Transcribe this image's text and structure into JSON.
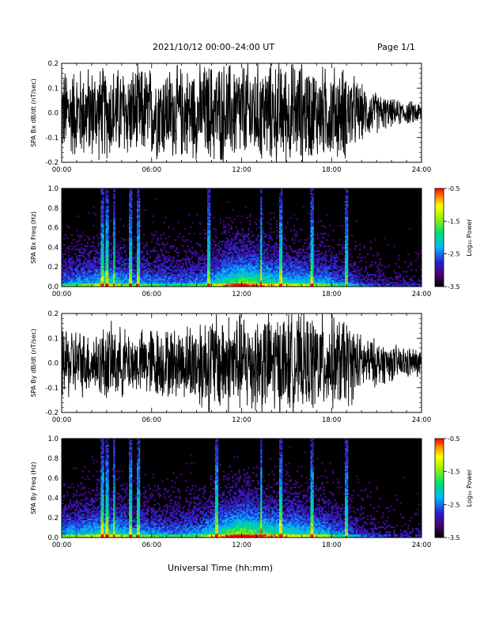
{
  "header": {
    "title": "2021/10/12  00:00–24:00 UT",
    "page": "Page 1/1"
  },
  "footer": {
    "xlabel": "Universal Time (hh:mm)"
  },
  "chart_data": [
    {
      "type": "line",
      "ylabel": "SPA Bx dB/dt (nT/sec)",
      "xlim": [
        "00:00",
        "24:00"
      ],
      "ylim": [
        -0.2,
        0.2
      ],
      "x_ticks": [
        "00:00",
        "06:00",
        "12:00",
        "18:00",
        "24:00"
      ],
      "y_ticks": [
        "-0.2",
        "-0.1",
        "0.0",
        "0.1",
        "0.2"
      ],
      "envelope_hours": [
        0,
        1,
        2,
        3,
        4,
        5,
        6,
        7,
        8,
        9,
        10,
        11,
        12,
        13,
        14,
        15,
        16,
        17,
        18,
        19,
        20,
        21,
        22,
        23,
        24
      ],
      "envelope_amplitude": [
        0.19,
        0.2,
        0.2,
        0.2,
        0.2,
        0.2,
        0.2,
        0.2,
        0.2,
        0.2,
        0.22,
        0.22,
        0.22,
        0.22,
        0.22,
        0.22,
        0.22,
        0.2,
        0.2,
        0.2,
        0.12,
        0.09,
        0.06,
        0.05,
        0.05
      ]
    },
    {
      "type": "heatmap",
      "ylabel": "SPA Bx Freq (Hz)",
      "xlim": [
        "00:00",
        "24:00"
      ],
      "ylim": [
        0.0,
        1.0
      ],
      "x_ticks": [
        "00:00",
        "06:00",
        "12:00",
        "18:00",
        "24:00"
      ],
      "y_ticks": [
        "0.0",
        "0.2",
        "0.4",
        "0.6",
        "0.8",
        "1.0"
      ],
      "colorbar": {
        "label": "Log₁₀ Power",
        "ticks": [
          "-0.5",
          "-1.5",
          "-2.5",
          "-3.5"
        ],
        "range": [
          -3.5,
          -0.5
        ]
      },
      "activity_hours": [
        0,
        1,
        2,
        3,
        4,
        5,
        6,
        7,
        8,
        9,
        10,
        11,
        12,
        13,
        14,
        15,
        16,
        17,
        18,
        19,
        20,
        21,
        22,
        23,
        24
      ],
      "activity_level": [
        0.5,
        0.55,
        0.6,
        0.7,
        0.6,
        0.55,
        0.5,
        0.5,
        0.45,
        0.5,
        0.6,
        0.8,
        0.95,
        0.85,
        0.75,
        0.7,
        0.65,
        0.6,
        0.55,
        0.45,
        0.3,
        0.25,
        0.2,
        0.2,
        0.2
      ],
      "bright_bands_hours": [
        2.7,
        3.0,
        3.5,
        4.6,
        5.1,
        9.8,
        13.3,
        14.6,
        16.7,
        19.0
      ]
    },
    {
      "type": "line",
      "ylabel": "SPA By dB/dt (nT/sec)",
      "xlim": [
        "00:00",
        "24:00"
      ],
      "ylim": [
        -0.2,
        0.2
      ],
      "x_ticks": [
        "00:00",
        "06:00",
        "12:00",
        "18:00",
        "24:00"
      ],
      "y_ticks": [
        "-0.2",
        "-0.1",
        "0.0",
        "0.1",
        "0.2"
      ],
      "envelope_hours": [
        0,
        1,
        2,
        3,
        4,
        5,
        6,
        7,
        8,
        9,
        10,
        11,
        12,
        13,
        14,
        15,
        16,
        17,
        18,
        19,
        20,
        21,
        22,
        23,
        24
      ],
      "envelope_amplitude": [
        0.16,
        0.15,
        0.13,
        0.17,
        0.15,
        0.13,
        0.16,
        0.15,
        0.15,
        0.2,
        0.22,
        0.22,
        0.22,
        0.22,
        0.22,
        0.22,
        0.2,
        0.22,
        0.2,
        0.2,
        0.12,
        0.1,
        0.08,
        0.07,
        0.06
      ]
    },
    {
      "type": "heatmap",
      "ylabel": "SPA By Freq (Hz)",
      "xlim": [
        "00:00",
        "24:00"
      ],
      "ylim": [
        0.0,
        1.0
      ],
      "x_ticks": [
        "00:00",
        "06:00",
        "12:00",
        "18:00",
        "24:00"
      ],
      "y_ticks": [
        "0.0",
        "0.2",
        "0.4",
        "0.6",
        "0.8",
        "1.0"
      ],
      "colorbar": {
        "label": "Log₁₀ Power",
        "ticks": [
          "-0.5",
          "-1.5",
          "-2.5",
          "-3.5"
        ],
        "range": [
          -3.5,
          -0.5
        ]
      },
      "activity_hours": [
        0,
        1,
        2,
        3,
        4,
        5,
        6,
        7,
        8,
        9,
        10,
        11,
        12,
        13,
        14,
        15,
        16,
        17,
        18,
        19,
        20,
        21,
        22,
        23,
        24
      ],
      "activity_level": [
        0.55,
        0.6,
        0.65,
        0.75,
        0.65,
        0.6,
        0.55,
        0.5,
        0.5,
        0.55,
        0.7,
        0.85,
        1.0,
        0.9,
        0.8,
        0.75,
        0.7,
        0.65,
        0.55,
        0.45,
        0.3,
        0.25,
        0.2,
        0.2,
        0.2
      ],
      "bright_bands_hours": [
        2.7,
        3.0,
        3.5,
        4.6,
        5.1,
        10.3,
        13.3,
        14.6,
        16.7,
        19.0
      ]
    }
  ]
}
